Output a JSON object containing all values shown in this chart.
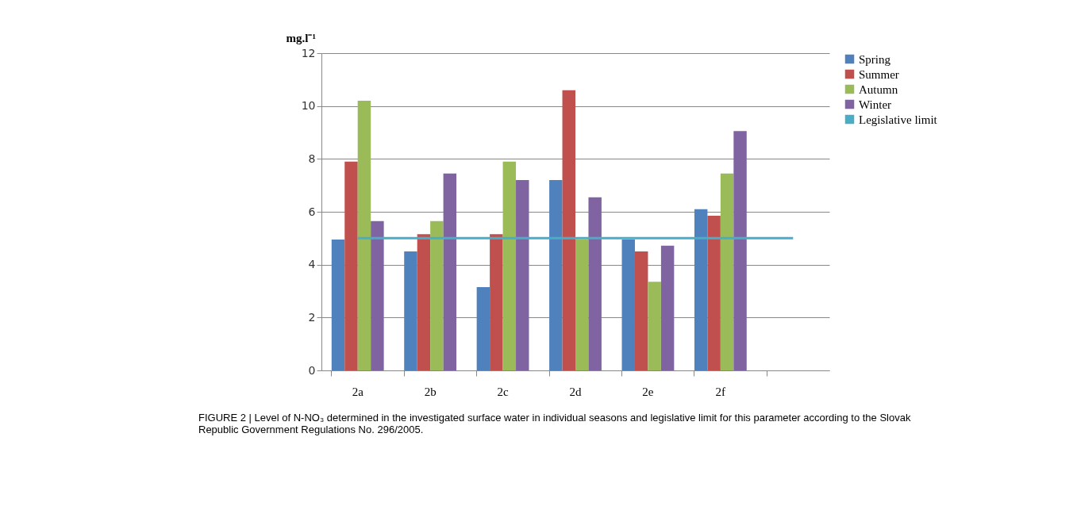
{
  "chart_data": {
    "type": "bar",
    "ylabel": "mg.l⁻¹",
    "categories": [
      "2a",
      "2b",
      "2c",
      "2d",
      "2e",
      "2f",
      null
    ],
    "series": [
      {
        "name": "Spring",
        "color": "#4f81bd",
        "values": [
          4.95,
          4.5,
          3.15,
          7.2,
          4.95,
          6.1,
          null
        ]
      },
      {
        "name": "Summer",
        "color": "#c0504d",
        "values": [
          7.9,
          5.15,
          5.15,
          10.6,
          4.5,
          5.85,
          null
        ]
      },
      {
        "name": "Autumn",
        "color": "#9bbb59",
        "values": [
          10.2,
          5.65,
          7.9,
          4.95,
          3.35,
          7.45,
          null
        ]
      },
      {
        "name": "Winter",
        "color": "#8064a2",
        "values": [
          5.65,
          7.45,
          7.2,
          6.55,
          4.72,
          9.05,
          null
        ]
      },
      {
        "name": "Legislative limit",
        "type": "line",
        "color": "#4bacc6",
        "values": [
          5,
          5,
          5,
          5,
          5,
          5,
          5
        ]
      }
    ],
    "ylim": [
      0,
      12
    ],
    "yticks": [
      0,
      2,
      4,
      6,
      8,
      10,
      12
    ],
    "grid": "y",
    "legend": "right",
    "annotations": [
      "FIGURE 2 | Level of N-NO₃ determined in the investigated surface water in individual seasons and legislative limit for this parameter according to the Slovak Republic Government Regulations No. 296/2005."
    ]
  }
}
